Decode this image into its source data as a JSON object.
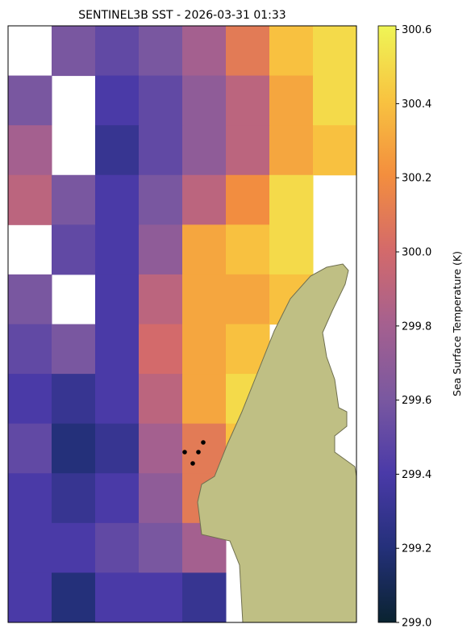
{
  "chart_data": {
    "type": "heatmap",
    "title": "SENTINEL3B SST - 2026-03-31 01:33",
    "colorbar_label": "Sea Surface Temperature (K)",
    "clim": [
      299.0,
      300.61
    ],
    "cticks": [
      {
        "value": 299,
        "label": "299.0"
      },
      299.2,
      299.4,
      299.6,
      299.8,
      {
        "value": 300,
        "label": "300.0"
      },
      300.2,
      300.4,
      300.6
    ],
    "values": [
      [
        null,
        299.6,
        299.5,
        299.6,
        299.8,
        300.1,
        300.4,
        300.5
      ],
      [
        299.6,
        null,
        299.4,
        299.5,
        299.7,
        299.9,
        300.3,
        300.5
      ],
      [
        299.8,
        null,
        299.3,
        299.5,
        299.7,
        299.9,
        300.3,
        300.4
      ],
      [
        299.9,
        299.6,
        299.4,
        299.6,
        299.9,
        300.2,
        300.5,
        null
      ],
      [
        null,
        299.5,
        299.4,
        299.7,
        300.3,
        300.4,
        300.5,
        null
      ],
      [
        299.6,
        null,
        299.4,
        299.9,
        300.3,
        300.3,
        300.4,
        null
      ],
      [
        299.5,
        299.6,
        299.4,
        300.0,
        300.3,
        300.4,
        null,
        null
      ],
      [
        299.4,
        299.3,
        299.4,
        299.9,
        300.3,
        300.5,
        null,
        null
      ],
      [
        299.5,
        299.2,
        299.3,
        299.8,
        300.1,
        300.4,
        null,
        null
      ],
      [
        299.4,
        299.3,
        299.4,
        299.7,
        300.1,
        null,
        null,
        null
      ],
      [
        299.4,
        299.4,
        299.5,
        299.6,
        299.8,
        null,
        null,
        null
      ],
      [
        299.4,
        299.2,
        299.4,
        299.4,
        299.3,
        null,
        null,
        null
      ]
    ]
  }
}
